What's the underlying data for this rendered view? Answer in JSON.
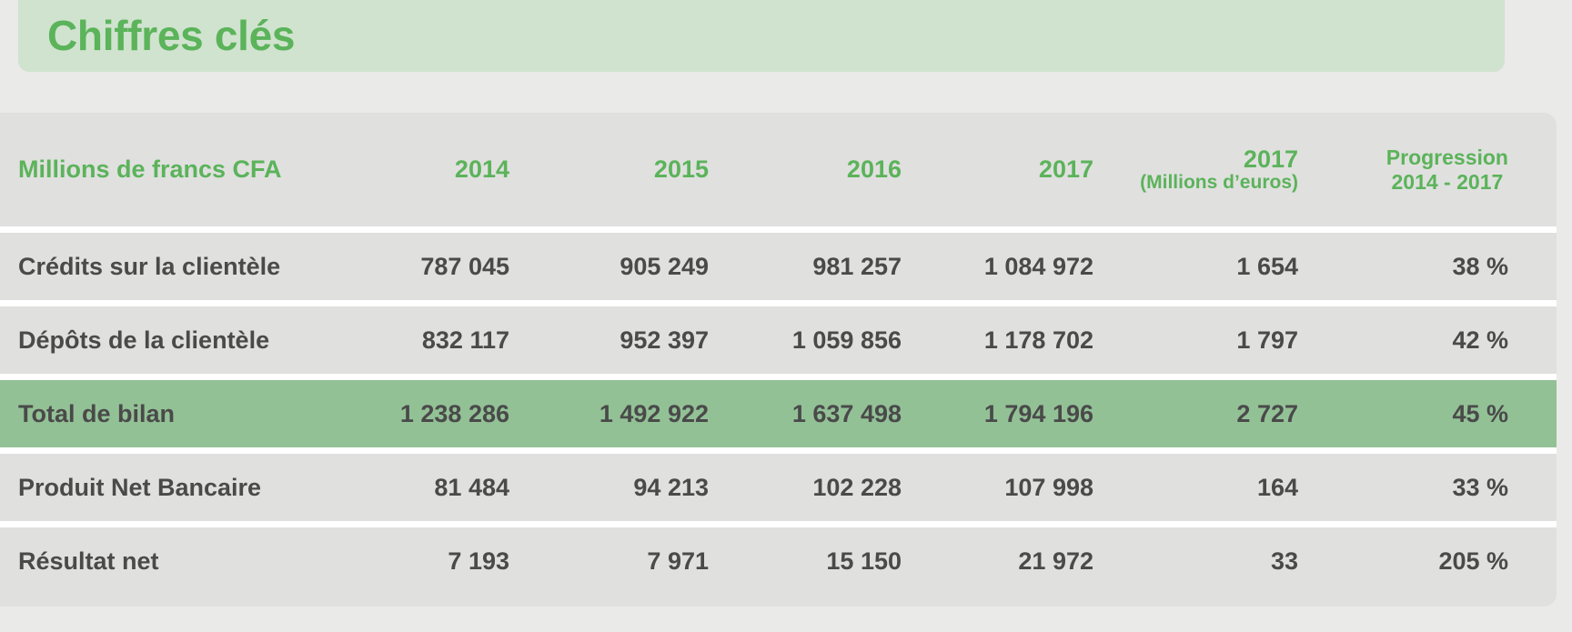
{
  "title": "Chiffres clés",
  "table": {
    "header": {
      "label": "Millions de francs CFA",
      "y2014": "2014",
      "y2015": "2015",
      "y2016": "2016",
      "y2017": "2017",
      "eur_year": "2017",
      "eur_unit": "(Millions d’euros)",
      "prog_line1": "Progression",
      "prog_line2": "2014 - 2017"
    },
    "rows": [
      {
        "label": "Crédits sur la clientèle",
        "y2014": "787 045",
        "y2015": "905 249",
        "y2016": "981 257",
        "y2017": "1 084 972",
        "eur": "1 654",
        "prog": "38 %"
      },
      {
        "label": "Dépôts de la clientèle",
        "y2014": "832 117",
        "y2015": "952 397",
        "y2016": "1 059 856",
        "y2017": "1 178 702",
        "eur": "1 797",
        "prog": "42 %"
      },
      {
        "label": "Total de bilan",
        "y2014": "1 238 286",
        "y2015": "1 492 922",
        "y2016": "1 637 498",
        "y2017": "1 794 196",
        "eur": "2 727",
        "prog": "45 %"
      },
      {
        "label": "Produit Net Bancaire",
        "y2014": "81 484",
        "y2015": "94 213",
        "y2016": "102 228",
        "y2017": "107 998",
        "eur": "164",
        "prog": "33 %"
      },
      {
        "label": "Résultat net",
        "y2014": "7 193",
        "y2015": "7 971",
        "y2016": "15 150",
        "y2017": "21 972",
        "eur": "33",
        "prog": "205 %"
      }
    ]
  },
  "colors": {
    "accent_green": "#5bb35a",
    "highlight_row": "#93c196",
    "banner": "#d0e3cf",
    "table_bg": "#e0e0df",
    "body_text": "#4a4a4a"
  }
}
